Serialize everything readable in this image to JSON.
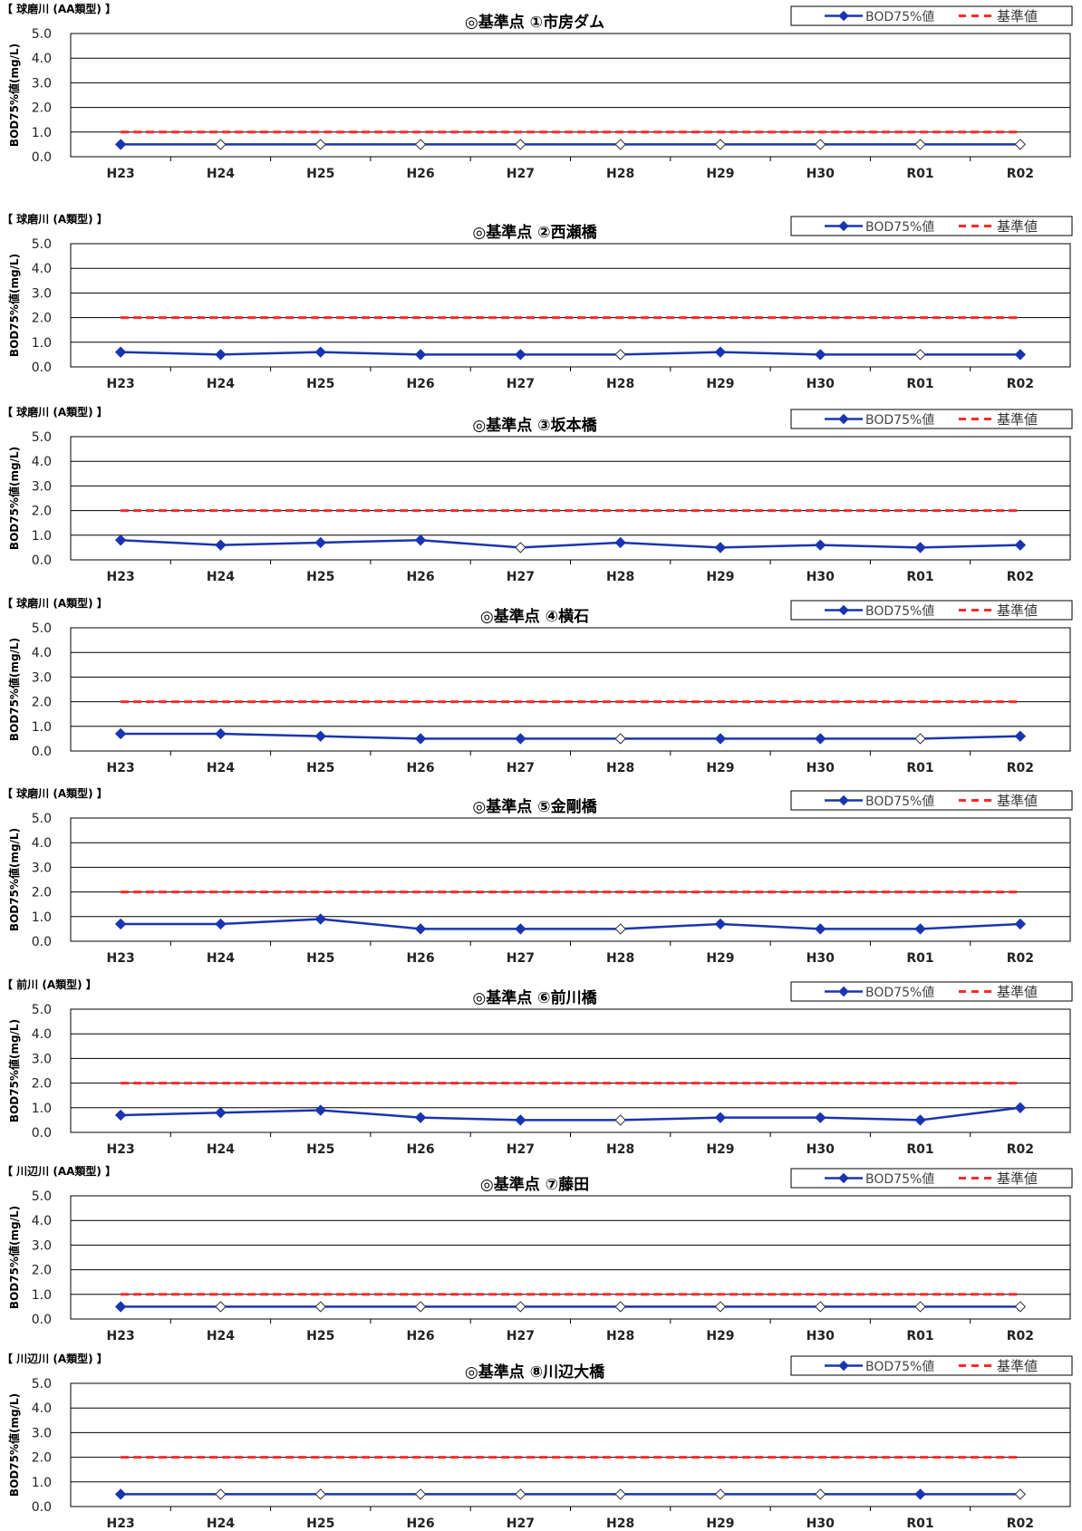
{
  "legend": {
    "series_label": "BOD75%値",
    "standard_label": "基準値"
  },
  "colors": {
    "series": "#1a35b0",
    "standard": "#ff2a2a",
    "grid": "#000000"
  },
  "chart_data": [
    {
      "type": "line",
      "river_label": "【 球磨川 (AA類型) 】",
      "title": "◎基準点 ①市房ダム",
      "ylabel": "BOD75%値(mg/L)",
      "ylim": [
        0,
        5
      ],
      "yticks": [
        "5.0",
        "4.0",
        "3.0",
        "2.0",
        "1.0",
        "0.0"
      ],
      "categories": [
        "H23",
        "H24",
        "H25",
        "H26",
        "H27",
        "H28",
        "H29",
        "H30",
        "R01",
        "R02"
      ],
      "series": [
        {
          "name": "BOD75%値",
          "values": [
            0.5,
            0.5,
            0.5,
            0.5,
            0.5,
            0.5,
            0.5,
            0.5,
            0.5,
            0.5
          ],
          "open_markers": [
            false,
            true,
            true,
            true,
            true,
            true,
            true,
            true,
            true,
            true
          ]
        },
        {
          "name": "基準値",
          "values": [
            1.0,
            1.0,
            1.0,
            1.0,
            1.0,
            1.0,
            1.0,
            1.0,
            1.0,
            1.0
          ]
        }
      ],
      "grid": true,
      "legend_position": "top-right"
    },
    {
      "type": "line",
      "river_label": "【 球磨川 (A類型) 】",
      "title": "◎基準点 ②西瀬橋",
      "ylabel": "BOD75%値(mg/L)",
      "ylim": [
        0,
        5
      ],
      "yticks": [
        "5.0",
        "4.0",
        "3.0",
        "2.0",
        "1.0",
        "0.0"
      ],
      "categories": [
        "H23",
        "H24",
        "H25",
        "H26",
        "H27",
        "H28",
        "H29",
        "H30",
        "R01",
        "R02"
      ],
      "series": [
        {
          "name": "BOD75%値",
          "values": [
            0.6,
            0.5,
            0.6,
            0.5,
            0.5,
            0.5,
            0.6,
            0.5,
            0.5,
            0.5
          ],
          "open_markers": [
            false,
            false,
            false,
            false,
            false,
            true,
            false,
            false,
            true,
            false
          ]
        },
        {
          "name": "基準値",
          "values": [
            2.0,
            2.0,
            2.0,
            2.0,
            2.0,
            2.0,
            2.0,
            2.0,
            2.0,
            2.0
          ]
        }
      ],
      "grid": true,
      "legend_position": "top-right"
    },
    {
      "type": "line",
      "river_label": "【 球磨川 (A類型) 】",
      "title": "◎基準点 ③坂本橋",
      "ylabel": "BOD75%値(mg/L)",
      "ylim": [
        0,
        5
      ],
      "yticks": [
        "5.0",
        "4.0",
        "3.0",
        "2.0",
        "1.0",
        "0.0"
      ],
      "categories": [
        "H23",
        "H24",
        "H25",
        "H26",
        "H27",
        "H28",
        "H29",
        "H30",
        "R01",
        "R02"
      ],
      "series": [
        {
          "name": "BOD75%値",
          "values": [
            0.8,
            0.6,
            0.7,
            0.8,
            0.5,
            0.7,
            0.5,
            0.6,
            0.5,
            0.6
          ],
          "open_markers": [
            false,
            false,
            false,
            false,
            true,
            false,
            false,
            false,
            false,
            false
          ]
        },
        {
          "name": "基準値",
          "values": [
            2.0,
            2.0,
            2.0,
            2.0,
            2.0,
            2.0,
            2.0,
            2.0,
            2.0,
            2.0
          ]
        }
      ],
      "grid": true,
      "legend_position": "top-right"
    },
    {
      "type": "line",
      "river_label": "【 球磨川 (A類型) 】",
      "title": "◎基準点 ④横石",
      "ylabel": "BOD75%値(mg/L)",
      "ylim": [
        0,
        5
      ],
      "yticks": [
        "5.0",
        "4.0",
        "3.0",
        "2.0",
        "1.0",
        "0.0"
      ],
      "categories": [
        "H23",
        "H24",
        "H25",
        "H26",
        "H27",
        "H28",
        "H29",
        "H30",
        "R01",
        "R02"
      ],
      "series": [
        {
          "name": "BOD75%値",
          "values": [
            0.7,
            0.7,
            0.6,
            0.5,
            0.5,
            0.5,
            0.5,
            0.5,
            0.5,
            0.6
          ],
          "open_markers": [
            false,
            false,
            false,
            false,
            false,
            true,
            false,
            false,
            true,
            false
          ]
        },
        {
          "name": "基準値",
          "values": [
            2.0,
            2.0,
            2.0,
            2.0,
            2.0,
            2.0,
            2.0,
            2.0,
            2.0,
            2.0
          ]
        }
      ],
      "grid": true,
      "legend_position": "top-right"
    },
    {
      "type": "line",
      "river_label": "【 球磨川 (A類型) 】",
      "title": "◎基準点 ⑤金剛橋",
      "ylabel": "BOD75%値(mg/L)",
      "ylim": [
        0,
        5
      ],
      "yticks": [
        "5.0",
        "4.0",
        "3.0",
        "2.0",
        "1.0",
        "0.0"
      ],
      "categories": [
        "H23",
        "H24",
        "H25",
        "H26",
        "H27",
        "H28",
        "H29",
        "H30",
        "R01",
        "R02"
      ],
      "series": [
        {
          "name": "BOD75%値",
          "values": [
            0.7,
            0.7,
            0.9,
            0.5,
            0.5,
            0.5,
            0.7,
            0.5,
            0.5,
            0.7
          ],
          "open_markers": [
            false,
            false,
            false,
            false,
            false,
            true,
            false,
            false,
            false,
            false
          ]
        },
        {
          "name": "基準値",
          "values": [
            2.0,
            2.0,
            2.0,
            2.0,
            2.0,
            2.0,
            2.0,
            2.0,
            2.0,
            2.0
          ]
        }
      ],
      "grid": true,
      "legend_position": "top-right"
    },
    {
      "type": "line",
      "river_label": "【 前川 (A類型) 】",
      "title": "◎基準点 ⑥前川橋",
      "ylabel": "BOD75%値(mg/L)",
      "ylim": [
        0,
        5
      ],
      "yticks": [
        "5.0",
        "4.0",
        "3.0",
        "2.0",
        "1.0",
        "0.0"
      ],
      "categories": [
        "H23",
        "H24",
        "H25",
        "H26",
        "H27",
        "H28",
        "H29",
        "H30",
        "R01",
        "R02"
      ],
      "series": [
        {
          "name": "BOD75%値",
          "values": [
            0.7,
            0.8,
            0.9,
            0.6,
            0.5,
            0.5,
            0.6,
            0.6,
            0.5,
            1.0
          ],
          "open_markers": [
            false,
            false,
            false,
            false,
            false,
            true,
            false,
            false,
            false,
            false
          ]
        },
        {
          "name": "基準値",
          "values": [
            2.0,
            2.0,
            2.0,
            2.0,
            2.0,
            2.0,
            2.0,
            2.0,
            2.0,
            2.0
          ]
        }
      ],
      "grid": true,
      "legend_position": "top-right"
    },
    {
      "type": "line",
      "river_label": "【 川辺川 (AA類型) 】",
      "title": "◎基準点 ⑦藤田",
      "ylabel": "BOD75%値(mg/L)",
      "ylim": [
        0,
        5
      ],
      "yticks": [
        "5.0",
        "4.0",
        "3.0",
        "2.0",
        "1.0",
        "0.0"
      ],
      "categories": [
        "H23",
        "H24",
        "H25",
        "H26",
        "H27",
        "H28",
        "H29",
        "H30",
        "R01",
        "R02"
      ],
      "series": [
        {
          "name": "BOD75%値",
          "values": [
            0.5,
            0.5,
            0.5,
            0.5,
            0.5,
            0.5,
            0.5,
            0.5,
            0.5,
            0.5
          ],
          "open_markers": [
            false,
            true,
            true,
            true,
            true,
            true,
            true,
            true,
            true,
            true
          ]
        },
        {
          "name": "基準値",
          "values": [
            1.0,
            1.0,
            1.0,
            1.0,
            1.0,
            1.0,
            1.0,
            1.0,
            1.0,
            1.0
          ]
        }
      ],
      "grid": true,
      "legend_position": "top-right"
    },
    {
      "type": "line",
      "river_label": "【 川辺川 (A類型) 】",
      "title": "◎基準点 ⑧川辺大橋",
      "ylabel": "BOD75%値(mg/L)",
      "ylim": [
        0,
        5
      ],
      "yticks": [
        "5.0",
        "4.0",
        "3.0",
        "2.0",
        "1.0",
        "0.0"
      ],
      "categories": [
        "H23",
        "H24",
        "H25",
        "H26",
        "H27",
        "H28",
        "H29",
        "H30",
        "R01",
        "R02"
      ],
      "series": [
        {
          "name": "BOD75%値",
          "values": [
            0.5,
            0.5,
            0.5,
            0.5,
            0.5,
            0.5,
            0.5,
            0.5,
            0.5,
            0.5
          ],
          "open_markers": [
            false,
            true,
            true,
            true,
            true,
            true,
            true,
            true,
            false,
            true
          ]
        },
        {
          "name": "基準値",
          "values": [
            2.0,
            2.0,
            2.0,
            2.0,
            2.0,
            2.0,
            2.0,
            2.0,
            2.0,
            2.0
          ]
        }
      ],
      "grid": true,
      "legend_position": "top-right"
    }
  ]
}
